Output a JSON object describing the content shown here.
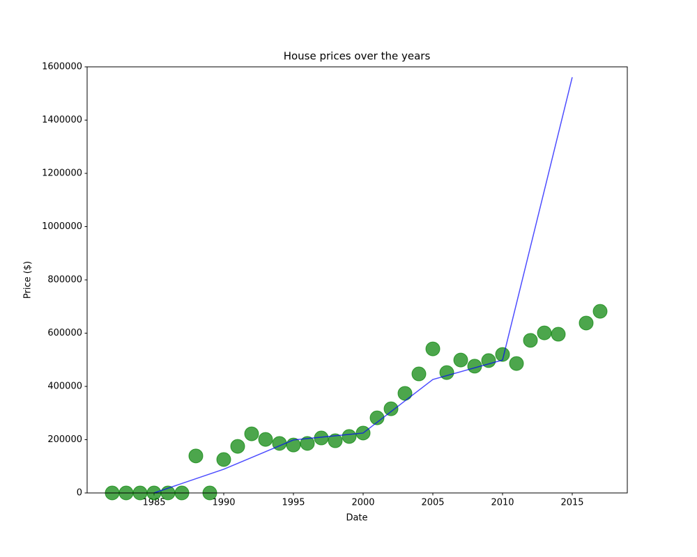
{
  "chart_data": {
    "type": "scatter",
    "title": "House prices over the years",
    "x_label": "Date",
    "y_label": "Price ($)",
    "xlim": [
      1980.2,
      2018.95
    ],
    "ylim": [
      0,
      1600000
    ],
    "xticks": [
      1985,
      1990,
      1995,
      2000,
      2005,
      2010,
      2015
    ],
    "yticks": [
      0,
      200000,
      400000,
      600000,
      800000,
      1000000,
      1200000,
      1400000,
      1600000
    ],
    "series": [
      {
        "type": "scatter",
        "color": "#008000",
        "opacity": 0.7,
        "x": [
          1982,
          1983,
          1984,
          1985,
          1986,
          1987,
          1988,
          1989,
          1990,
          1991,
          1992,
          1993,
          1994,
          1995,
          1996,
          1997,
          1998,
          1999,
          2000,
          2001,
          2002,
          2003,
          2004,
          2005,
          2006,
          2007,
          2008,
          2009,
          2010,
          2011,
          2012,
          2013,
          2014,
          2016,
          2017
        ],
        "values": [
          0,
          0,
          0,
          0,
          0,
          0,
          139000,
          0,
          125500,
          175000,
          222000,
          201000,
          186000,
          180000,
          186000,
          206500,
          196000,
          212000,
          225000,
          282000,
          316000,
          374000,
          447000,
          541000,
          452000,
          499000,
          476000,
          497000,
          520000,
          486000,
          573000,
          601000,
          596000,
          638000,
          682000
        ]
      },
      {
        "type": "line",
        "color": "#0000ff",
        "opacity": 0.7,
        "x": [
          1985,
          1990,
          1995,
          2000,
          2005,
          2010,
          2015
        ],
        "values": [
          0,
          89000,
          199000,
          225000,
          426000,
          499000,
          1561000
        ]
      }
    ]
  }
}
